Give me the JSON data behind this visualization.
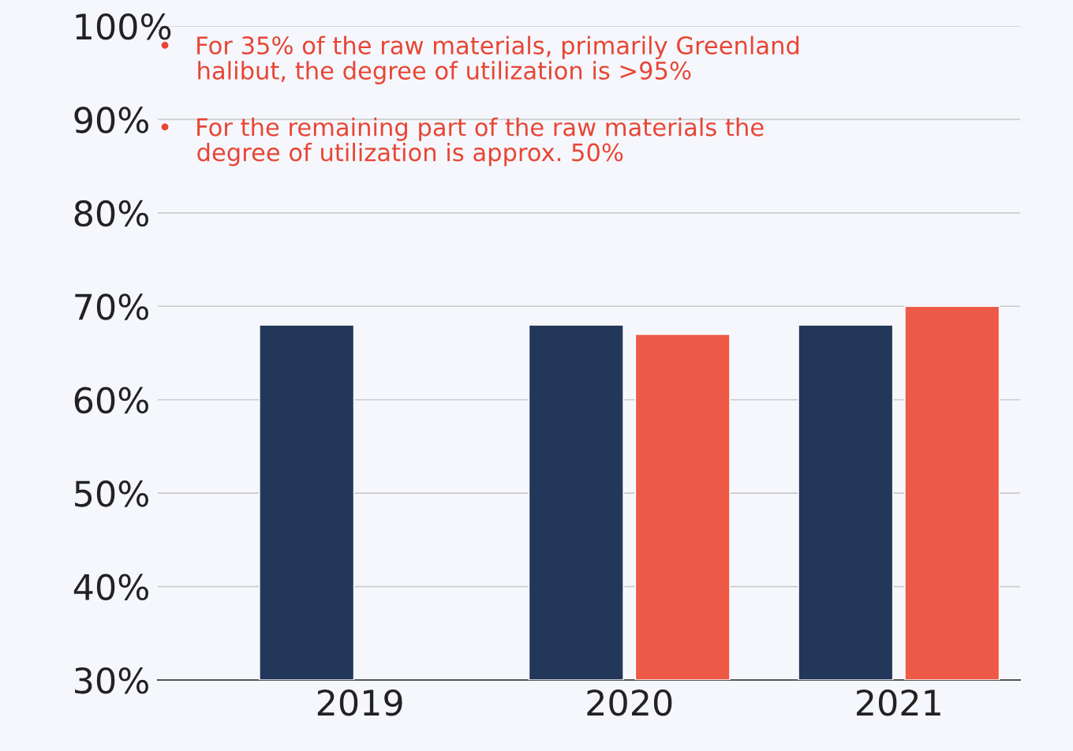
{
  "chart_data": {
    "type": "bar",
    "categories": [
      "2019",
      "2020",
      "2021"
    ],
    "series": [
      {
        "color": "#23375a",
        "values": [
          68,
          68,
          68
        ]
      },
      {
        "color": "#ee5a48",
        "values": [
          null,
          67,
          70
        ]
      }
    ],
    "ylim": [
      30,
      100
    ],
    "yticks": [
      {
        "value": 30,
        "label": "30%"
      },
      {
        "value": 40,
        "label": "40%"
      },
      {
        "value": 50,
        "label": "50%"
      },
      {
        "value": 60,
        "label": "60%"
      },
      {
        "value": 70,
        "label": "70%"
      },
      {
        "value": 80,
        "label": "80%"
      },
      {
        "value": 90,
        "label": "90%"
      },
      {
        "value": 100,
        "label": "100%"
      }
    ],
    "grid": "y",
    "legend": false,
    "annotations": [
      "•   For 35% of the raw materials, primarily Greenland\n     halibut, the degree of utilization is >95%",
      "•   For the remaining part of the raw materials the\n     degree of utilization is approx. 50%"
    ]
  }
}
